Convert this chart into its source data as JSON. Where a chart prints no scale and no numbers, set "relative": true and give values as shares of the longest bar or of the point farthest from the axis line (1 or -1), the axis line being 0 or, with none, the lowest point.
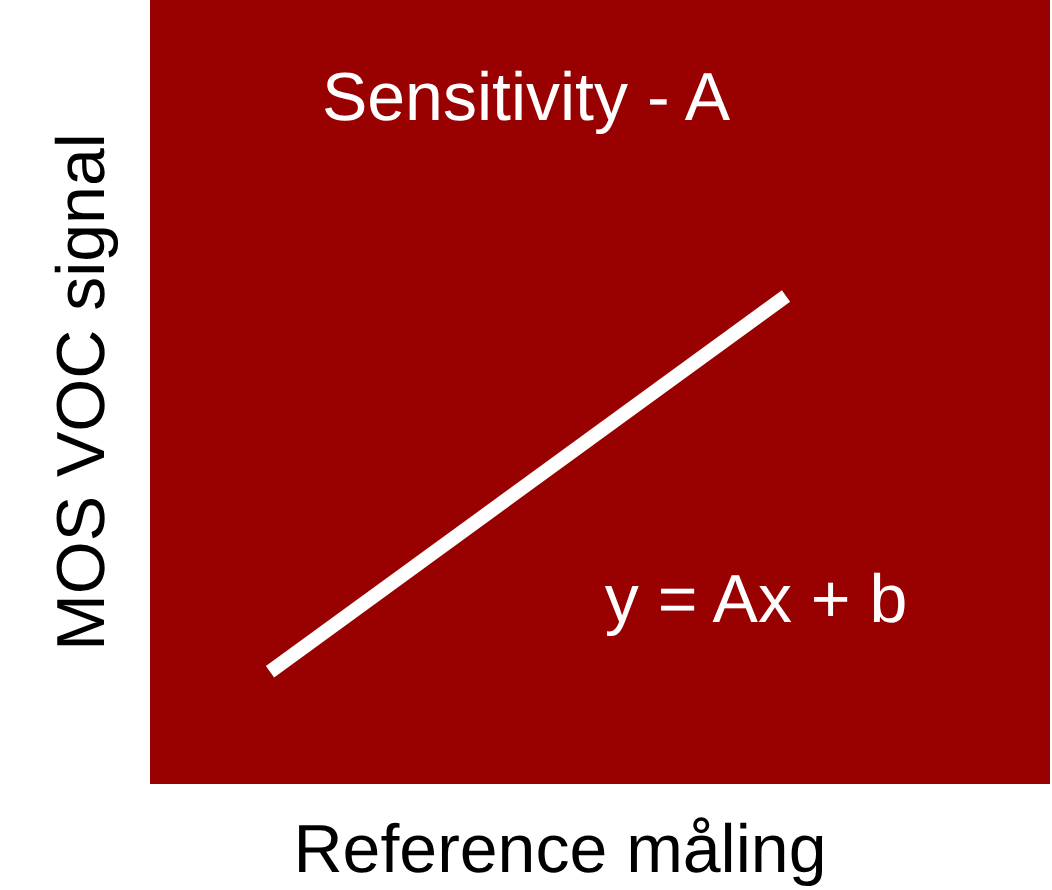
{
  "chart_data": {
    "type": "line",
    "title": "Sensitivity - A",
    "xlabel": "Reference måling",
    "ylabel": "MOS VOC signal",
    "categories": [
      null,
      null
    ],
    "relative": true,
    "series": [
      {
        "color": "#ffffff",
        "values": [
          0.23,
          1
        ]
      }
    ],
    "annotations": [
      "y = Ax + b"
    ],
    "line_style": "solid"
  }
}
